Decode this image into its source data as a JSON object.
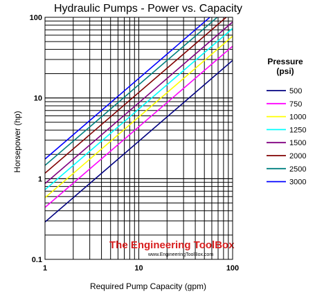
{
  "chart_data": {
    "type": "line",
    "title": "Hydraulic Pumps - Power vs. Capacity",
    "xlabel": "Required Pump Capacity (gpm)",
    "ylabel": "Horsepower (hp)",
    "xscale": "log",
    "yscale": "log",
    "xlim": [
      1,
      100
    ],
    "ylim": [
      0.1,
      100
    ],
    "xticks": [
      "1",
      "10",
      "100"
    ],
    "yticks": [
      "0.1",
      "1",
      "10",
      "100"
    ],
    "grid": true,
    "legend_title": "Pressure\n(psi)",
    "legend_placement": "right",
    "x": [
      1,
      100
    ],
    "series": [
      {
        "name": "500",
        "color": "#000080",
        "values": [
          0.29,
          29.2
        ]
      },
      {
        "name": "750",
        "color": "#ff00ff",
        "values": [
          0.44,
          43.8
        ]
      },
      {
        "name": "1000",
        "color": "#ffff00",
        "values": [
          0.58,
          58.3
        ]
      },
      {
        "name": "1250",
        "color": "#00ffff",
        "values": [
          0.73,
          72.9
        ]
      },
      {
        "name": "1500",
        "color": "#800080",
        "values": [
          0.87,
          87.5
        ]
      },
      {
        "name": "2000",
        "color": "#800000",
        "values": [
          1.17,
          117
        ]
      },
      {
        "name": "2500",
        "color": "#008080",
        "values": [
          1.46,
          146
        ]
      },
      {
        "name": "3000",
        "color": "#0000ff",
        "values": [
          1.75,
          175
        ]
      }
    ]
  },
  "watermark": {
    "name": "The Engineering ToolBox",
    "url": "www.EngineeringToolBox.com"
  }
}
